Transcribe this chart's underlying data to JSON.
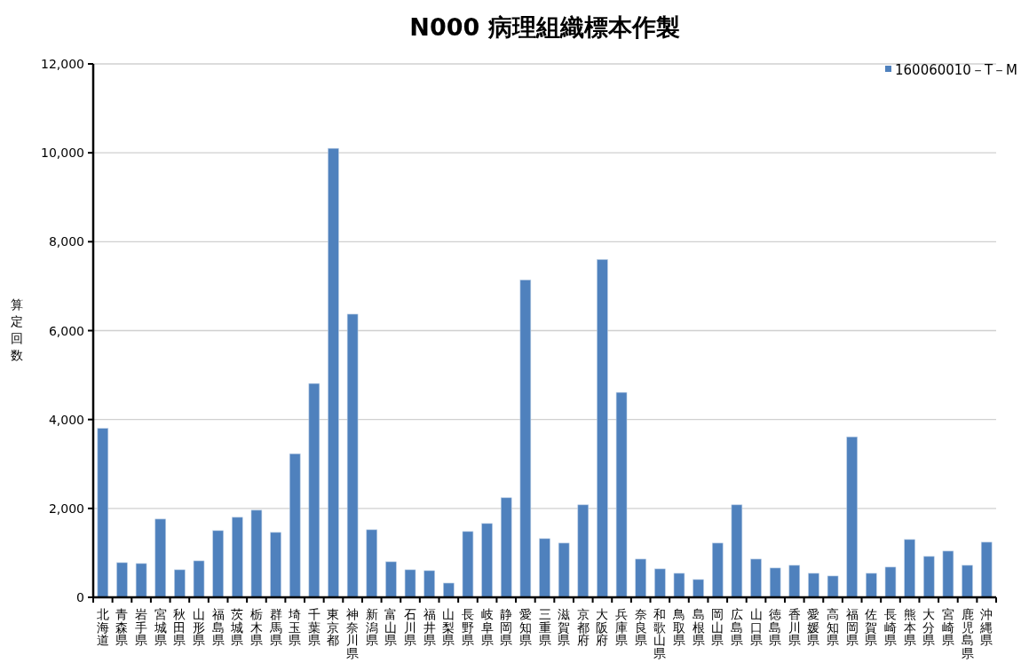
{
  "chart_data": {
    "type": "bar",
    "title": "N000 病理組織標本作製",
    "ylabel": "算定回数",
    "categories": [
      "北海道",
      "青森県",
      "岩手県",
      "宮城県",
      "秋田県",
      "山形県",
      "福島県",
      "茨城県",
      "栃木県",
      "群馬県",
      "埼玉県",
      "千葉県",
      "東京都",
      "神奈川県",
      "新潟県",
      "富山県",
      "石川県",
      "福井県",
      "山梨県",
      "長野県",
      "岐阜県",
      "静岡県",
      "愛知県",
      "三重県",
      "滋賀県",
      "京都府",
      "大阪府",
      "兵庫県",
      "奈良県",
      "和歌山県",
      "鳥取県",
      "島根県",
      "岡山県",
      "広島県",
      "山口県",
      "徳島県",
      "香川県",
      "愛媛県",
      "高知県",
      "福岡県",
      "佐賀県",
      "長崎県",
      "熊本県",
      "大分県",
      "宮崎県",
      "鹿児島県",
      "沖縄県"
    ],
    "series": [
      {
        "name": "160060010－T－M",
        "color": "#4f81bd",
        "values": [
          3800,
          780,
          760,
          1760,
          620,
          820,
          1500,
          1800,
          1960,
          1460,
          3230,
          4810,
          10100,
          6370,
          1520,
          800,
          620,
          600,
          320,
          1480,
          1660,
          2240,
          7140,
          1320,
          1220,
          2080,
          7600,
          4610,
          860,
          640,
          540,
          400,
          1220,
          2080,
          860,
          660,
          720,
          540,
          480,
          3610,
          540,
          680,
          1300,
          920,
          1040,
          720,
          1240
        ]
      }
    ],
    "ylim": [
      0,
      12000
    ],
    "yticks": [
      {
        "value": 0,
        "label": "0"
      },
      {
        "value": 2000,
        "label": "2,000"
      },
      {
        "value": 4000,
        "label": "4,000"
      },
      {
        "value": 6000,
        "label": "6,000"
      },
      {
        "value": 8000,
        "label": "8,000"
      },
      {
        "value": 10000,
        "label": "10,000"
      },
      {
        "value": 12000,
        "label": "12,000"
      }
    ],
    "grid": "y",
    "legend": "top right"
  }
}
